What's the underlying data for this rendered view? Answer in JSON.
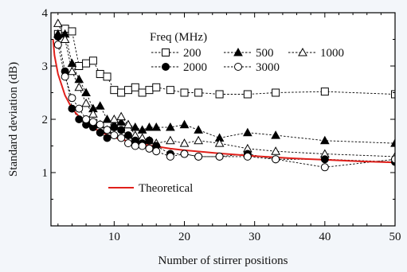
{
  "chart_data": {
    "type": "line",
    "xlabel": "Number of stirrer positions",
    "ylabel": "Standard deviation (dB)",
    "xlim": [
      1,
      50
    ],
    "ylim": [
      0,
      4
    ],
    "x_ticks": [
      10,
      20,
      30,
      40,
      50
    ],
    "y_ticks": [
      1,
      2,
      3,
      4
    ],
    "legend_title": "Freq (MHz)",
    "series": [
      {
        "name": "200",
        "marker": "square-open",
        "style": "dotted",
        "color": "#000000",
        "x": [
          2,
          3,
          4,
          5,
          6,
          7,
          8,
          9,
          10,
          11,
          12,
          13,
          14,
          15,
          16,
          18,
          20,
          22,
          25,
          29,
          33,
          40,
          50
        ],
        "y": [
          3.6,
          3.7,
          3.65,
          3.0,
          3.05,
          3.1,
          2.85,
          2.8,
          2.55,
          2.5,
          2.55,
          2.6,
          2.5,
          2.55,
          2.6,
          2.55,
          2.5,
          2.5,
          2.47,
          2.47,
          2.5,
          2.52,
          2.47
        ]
      },
      {
        "name": "500",
        "marker": "triangle-filled",
        "style": "dotted",
        "color": "#000000",
        "x": [
          2,
          3,
          4,
          5,
          6,
          7,
          8,
          9,
          10,
          11,
          12,
          13,
          14,
          15,
          16,
          18,
          20,
          22,
          25,
          29,
          33,
          40,
          50
        ],
        "y": [
          3.6,
          3.6,
          3.05,
          2.75,
          2.5,
          2.2,
          2.25,
          2.0,
          1.9,
          1.95,
          1.9,
          1.85,
          1.8,
          1.85,
          1.85,
          1.85,
          1.9,
          1.8,
          1.65,
          1.75,
          1.7,
          1.6,
          1.55
        ]
      },
      {
        "name": "1000",
        "marker": "triangle-open",
        "style": "dotted",
        "color": "#000000",
        "x": [
          2,
          3,
          4,
          5,
          6,
          7,
          8,
          9,
          10,
          11,
          12,
          13,
          14,
          15,
          16,
          18,
          20,
          22,
          25,
          29,
          33,
          40,
          50
        ],
        "y": [
          3.8,
          3.5,
          2.9,
          2.6,
          2.3,
          2.1,
          1.9,
          1.8,
          2.0,
          2.05,
          1.9,
          1.7,
          1.65,
          1.6,
          1.55,
          1.6,
          1.55,
          1.6,
          1.55,
          1.45,
          1.4,
          1.35,
          1.3
        ]
      },
      {
        "name": "2000",
        "marker": "circle-filled",
        "style": "dotted",
        "color": "#000000",
        "x": [
          2,
          3,
          4,
          5,
          6,
          7,
          8,
          9,
          10,
          11,
          12,
          13,
          14,
          15,
          16,
          18,
          20,
          22,
          25,
          29,
          33,
          40,
          50
        ],
        "y": [
          3.55,
          2.9,
          2.2,
          2.0,
          1.9,
          1.85,
          1.75,
          1.65,
          1.85,
          1.8,
          1.7,
          1.6,
          1.55,
          1.6,
          1.5,
          1.35,
          1.35,
          1.3,
          1.3,
          1.35,
          1.25,
          1.25,
          1.2
        ]
      },
      {
        "name": "3000",
        "marker": "circle-open",
        "style": "dotted",
        "color": "#000000",
        "x": [
          2,
          3,
          4,
          5,
          6,
          7,
          8,
          9,
          10,
          11,
          12,
          13,
          14,
          15,
          16,
          18,
          20,
          22,
          25,
          29,
          33,
          40,
          50
        ],
        "y": [
          3.4,
          2.8,
          2.4,
          2.2,
          2.0,
          1.95,
          1.9,
          1.8,
          1.7,
          1.65,
          1.55,
          1.5,
          1.5,
          1.45,
          1.4,
          1.3,
          1.35,
          1.3,
          1.3,
          1.3,
          1.25,
          1.1,
          1.25
        ]
      },
      {
        "name": "Theoretical",
        "marker": "none",
        "style": "solid",
        "color": "#e0201b",
        "x": [
          1.3,
          1.5,
          2,
          3,
          4,
          5,
          6,
          7,
          8,
          9,
          10,
          12,
          14,
          16,
          18,
          20,
          25,
          30,
          35,
          40,
          45,
          50
        ],
        "y": [
          3.5,
          3.2,
          2.85,
          2.45,
          2.2,
          2.05,
          1.93,
          1.84,
          1.77,
          1.71,
          1.66,
          1.59,
          1.53,
          1.49,
          1.45,
          1.42,
          1.36,
          1.31,
          1.27,
          1.24,
          1.21,
          1.19
        ]
      }
    ]
  }
}
